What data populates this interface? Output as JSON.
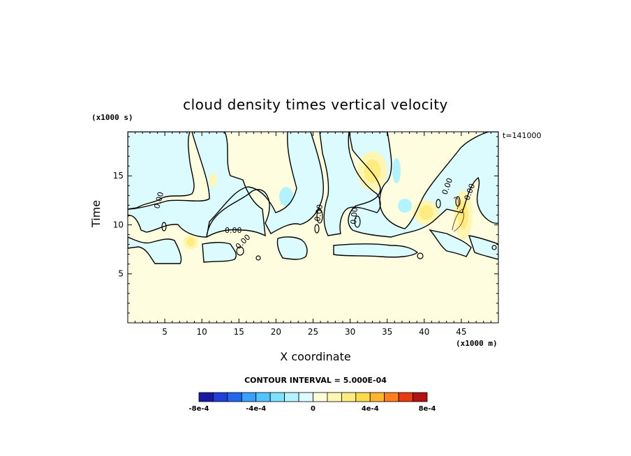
{
  "chart_data": {
    "type": "heatmap",
    "title": "cloud density times vertical velocity",
    "xlabel": "X coordinate",
    "ylabel": "Time",
    "x_units": "(x1000 m)",
    "y_units": "(x1000 s)",
    "timestamp": "t=141000",
    "contour_interval_text": "CONTOUR INTERVAL = 5.000E-04",
    "contour_label": "0.00",
    "xlim": [
      0,
      50
    ],
    "ylim": [
      0,
      19.5
    ],
    "x_ticks": [
      5,
      10,
      15,
      20,
      25,
      30,
      35,
      40,
      45
    ],
    "y_ticks": [
      5,
      10,
      15
    ],
    "colorbar": {
      "bins": [
        {
          "color": "#1a1aa0"
        },
        {
          "color": "#1f3fd6"
        },
        {
          "color": "#2266ee"
        },
        {
          "color": "#3aa0ff"
        },
        {
          "color": "#4fc4ff"
        },
        {
          "color": "#7fe0ff"
        },
        {
          "color": "#b3f2ff"
        },
        {
          "color": "#dcfbff"
        },
        {
          "color": "#fffdd8"
        },
        {
          "color": "#fff6b3"
        },
        {
          "color": "#ffec80"
        },
        {
          "color": "#ffd94a"
        },
        {
          "color": "#ffb62e"
        },
        {
          "color": "#ff7f1f"
        },
        {
          "color": "#e83a14"
        },
        {
          "color": "#b31212"
        }
      ],
      "tick_labels": [
        "-8e-4",
        "-4e-4",
        "0",
        "4e-4",
        "8e-4"
      ],
      "tick_values": [
        -0.0008,
        -0.0004,
        0,
        0.0004,
        0.0008
      ],
      "range": [
        -0.0008,
        0.0008
      ]
    },
    "regions": {
      "background_level": "#fffde0",
      "negative_level": "#dcfbff",
      "weak_positive_level": "#fff6b3",
      "moderate_positive_level": "#ffec80",
      "weak_negative_level": "#b3f2ff"
    },
    "features": [
      {
        "kind": "negative",
        "x": [
          0,
          20
        ],
        "y": [
          12,
          19.5
        ]
      },
      {
        "kind": "negative",
        "x": [
          21,
          28
        ],
        "y": [
          9,
          19.5
        ]
      },
      {
        "kind": "negative",
        "x": [
          29,
          43
        ],
        "y": [
          9,
          19.5
        ]
      },
      {
        "kind": "negative",
        "x": [
          46,
          50
        ],
        "y": [
          9,
          19.5
        ]
      },
      {
        "kind": "positive",
        "x": [
          7.5,
          9.5
        ],
        "y": [
          7.5,
          9
        ]
      },
      {
        "kind": "positive",
        "x": [
          31,
          35
        ],
        "y": [
          13.5,
          17.5
        ]
      },
      {
        "kind": "positive",
        "x": [
          38.5,
          42
        ],
        "y": [
          10,
          12.5
        ]
      },
      {
        "kind": "positive",
        "x": [
          44,
          46.5
        ],
        "y": [
          8.5,
          13.5
        ]
      }
    ]
  }
}
